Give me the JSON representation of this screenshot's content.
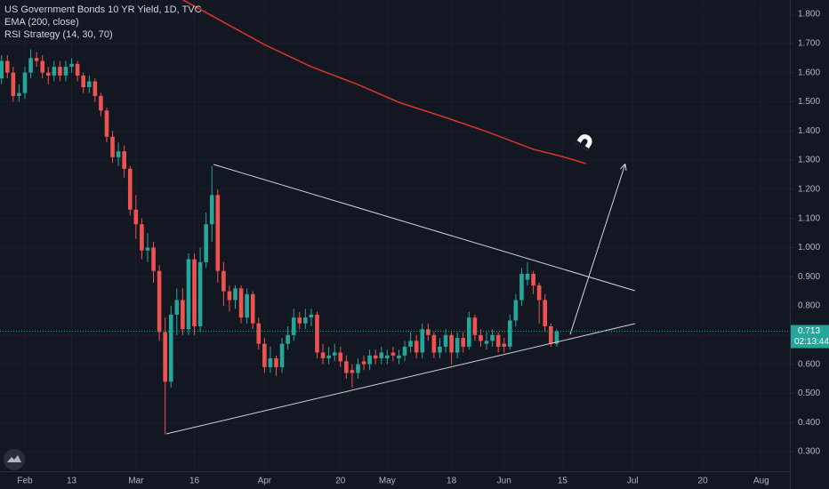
{
  "chart_data": {
    "type": "candlestick",
    "title": "US Government Bonds 10 YR Yield, 1D, TVC",
    "indicators": [
      "EMA (200, close)",
      "RSI Strategy (14, 30, 70)"
    ],
    "x": [
      -4,
      -3,
      -2,
      -1,
      0,
      1,
      2,
      3,
      4,
      5,
      6,
      7,
      8,
      9,
      10,
      11,
      12,
      13,
      14,
      15,
      16,
      17,
      18,
      19,
      20,
      21,
      22,
      23,
      24,
      25,
      26,
      27,
      28,
      29,
      30,
      31,
      32,
      33,
      34,
      35,
      36,
      37,
      38,
      39,
      40,
      41,
      42,
      43,
      44,
      45,
      46,
      47,
      48,
      49,
      50,
      51,
      52,
      53,
      54,
      55,
      56,
      57,
      58,
      59,
      60,
      61,
      62,
      63,
      64,
      65,
      66,
      67,
      68,
      69,
      70,
      71,
      72,
      73,
      74,
      75,
      76,
      77,
      78,
      79,
      80,
      81,
      82,
      83,
      84,
      85,
      86,
      87,
      88,
      89,
      90,
      91
    ],
    "open": [
      1.58,
      1.64,
      1.6,
      1.52,
      1.53,
      1.6,
      1.65,
      1.64,
      1.6,
      1.59,
      1.62,
      1.59,
      1.62,
      1.63,
      1.59,
      1.55,
      1.57,
      1.52,
      1.47,
      1.38,
      1.31,
      1.33,
      1.27,
      1.13,
      1.08,
      0.99,
      1.0,
      0.92,
      0.71,
      0.54,
      0.77,
      0.82,
      0.72,
      0.96,
      0.73,
      0.95,
      1.08,
      1.18,
      0.92,
      0.85,
      0.82,
      0.86,
      0.76,
      0.84,
      0.74,
      0.67,
      0.59,
      0.62,
      0.59,
      0.67,
      0.7,
      0.76,
      0.74,
      0.76,
      0.77,
      0.64,
      0.62,
      0.63,
      0.64,
      0.61,
      0.58,
      0.57,
      0.61,
      0.6,
      0.63,
      0.62,
      0.62,
      0.64,
      0.62,
      0.63,
      0.66,
      0.68,
      0.64,
      0.72,
      0.7,
      0.64,
      0.66,
      0.7,
      0.64,
      0.69,
      0.66,
      0.76,
      0.7,
      0.67,
      0.68,
      0.7,
      0.67,
      0.66,
      0.75,
      0.82,
      0.89,
      0.91,
      0.87,
      0.82,
      0.73,
      0.67
    ],
    "high": [
      1.66,
      1.66,
      1.62,
      1.56,
      1.62,
      1.68,
      1.67,
      1.66,
      1.62,
      1.64,
      1.64,
      1.64,
      1.65,
      1.64,
      1.6,
      1.59,
      1.58,
      1.53,
      1.48,
      1.4,
      1.36,
      1.35,
      1.28,
      1.18,
      1.1,
      1.05,
      1.02,
      0.94,
      0.76,
      0.8,
      0.86,
      0.86,
      0.98,
      0.98,
      1.0,
      1.12,
      1.28,
      1.2,
      0.95,
      0.87,
      0.87,
      0.87,
      0.86,
      0.85,
      0.76,
      0.69,
      0.66,
      0.63,
      0.69,
      0.73,
      0.79,
      0.78,
      0.79,
      0.79,
      0.78,
      0.67,
      0.66,
      0.67,
      0.66,
      0.63,
      0.6,
      0.62,
      0.63,
      0.65,
      0.65,
      0.66,
      0.65,
      0.66,
      0.65,
      0.68,
      0.71,
      0.7,
      0.74,
      0.74,
      0.71,
      0.69,
      0.72,
      0.71,
      0.71,
      0.71,
      0.78,
      0.77,
      0.72,
      0.71,
      0.72,
      0.71,
      0.69,
      0.77,
      0.84,
      0.93,
      0.95,
      0.92,
      0.88,
      0.84,
      0.74,
      0.72
    ],
    "low": [
      1.56,
      1.58,
      1.5,
      1.5,
      1.51,
      1.58,
      1.62,
      1.58,
      1.56,
      1.57,
      1.57,
      1.57,
      1.6,
      1.57,
      1.53,
      1.53,
      1.5,
      1.45,
      1.36,
      1.29,
      1.28,
      1.24,
      1.11,
      1.03,
      0.96,
      0.95,
      0.88,
      0.68,
      0.36,
      0.52,
      0.7,
      0.7,
      0.7,
      0.7,
      0.71,
      0.93,
      1.02,
      0.88,
      0.8,
      0.78,
      0.79,
      0.74,
      0.74,
      0.72,
      0.65,
      0.57,
      0.57,
      0.56,
      0.57,
      0.65,
      0.68,
      0.72,
      0.72,
      0.73,
      0.62,
      0.6,
      0.6,
      0.61,
      0.59,
      0.55,
      0.52,
      0.55,
      0.58,
      0.58,
      0.6,
      0.6,
      0.6,
      0.61,
      0.6,
      0.61,
      0.64,
      0.62,
      0.62,
      0.68,
      0.62,
      0.62,
      0.64,
      0.6,
      0.62,
      0.64,
      0.65,
      0.68,
      0.66,
      0.65,
      0.66,
      0.64,
      0.64,
      0.65,
      0.73,
      0.8,
      0.87,
      0.84,
      0.74,
      0.71,
      0.66,
      0.66
    ],
    "close": [
      1.64,
      1.6,
      1.52,
      1.53,
      1.6,
      1.65,
      1.64,
      1.6,
      1.59,
      1.62,
      1.59,
      1.62,
      1.63,
      1.59,
      1.55,
      1.57,
      1.52,
      1.47,
      1.38,
      1.31,
      1.33,
      1.27,
      1.13,
      1.08,
      0.99,
      1.0,
      0.92,
      0.71,
      0.54,
      0.77,
      0.82,
      0.72,
      0.96,
      0.73,
      0.95,
      1.08,
      1.18,
      0.92,
      0.85,
      0.82,
      0.86,
      0.76,
      0.84,
      0.74,
      0.67,
      0.59,
      0.62,
      0.59,
      0.67,
      0.7,
      0.76,
      0.74,
      0.76,
      0.77,
      0.64,
      0.62,
      0.63,
      0.64,
      0.61,
      0.57,
      0.57,
      0.6,
      0.6,
      0.63,
      0.62,
      0.64,
      0.63,
      0.63,
      0.63,
      0.66,
      0.68,
      0.64,
      0.72,
      0.7,
      0.64,
      0.66,
      0.7,
      0.64,
      0.69,
      0.66,
      0.76,
      0.7,
      0.68,
      0.68,
      0.7,
      0.66,
      0.66,
      0.75,
      0.82,
      0.91,
      0.91,
      0.87,
      0.82,
      0.73,
      0.67,
      0.713
    ],
    "up_color": "#26a69a",
    "down_color": "#ef5350",
    "ema": {
      "name": "EMA (200, close)",
      "color": "#d8362b",
      "x": [
        27,
        34,
        41,
        49,
        57,
        64,
        72,
        79,
        87,
        92,
        96
      ],
      "values": [
        1.85,
        1.773,
        1.696,
        1.62,
        1.559,
        1.498,
        1.446,
        1.398,
        1.337,
        1.312,
        1.288
      ]
    },
    "drawings": [
      {
        "type": "line",
        "color": "#d1d4dc",
        "x": [
          32.3,
          104.4
        ],
        "y": [
          1.285,
          0.852
        ]
      },
      {
        "type": "line",
        "color": "#d1d4dc",
        "x": [
          24.2,
          104.4
        ],
        "y": [
          0.361,
          0.739
        ]
      },
      {
        "type": "arrow",
        "color": "#d1d4dc",
        "x": [
          93.3,
          102.7
        ],
        "y": [
          0.702,
          1.285
        ]
      }
    ],
    "last_price": 0.713,
    "countdown": "02:13:44",
    "xlim": [
      -4.26,
      130.9
    ],
    "ylim": [
      0.233,
      1.849
    ],
    "yticks": [
      {
        "value": 1.8,
        "label": "1.800"
      },
      {
        "value": 1.7,
        "label": "1.700"
      },
      {
        "value": 1.6,
        "label": "1.600"
      },
      {
        "value": 1.5,
        "label": "1.500"
      },
      {
        "value": 1.4,
        "label": "1.400"
      },
      {
        "value": 1.3,
        "label": "1.300"
      },
      {
        "value": 1.2,
        "label": "1.200"
      },
      {
        "value": 1.1,
        "label": "1.100"
      },
      {
        "value": 1.0,
        "label": "1.000"
      },
      {
        "value": 0.9,
        "label": "0.900"
      },
      {
        "value": 0.8,
        "label": "0.800"
      },
      {
        "value": 0.7,
        "label": "0.700"
      },
      {
        "value": 0.6,
        "label": "0.600"
      },
      {
        "value": 0.5,
        "label": "0.500"
      },
      {
        "value": 0.4,
        "label": "0.400"
      },
      {
        "value": 0.3,
        "label": "0.300"
      }
    ],
    "xticks": [
      {
        "value": 0,
        "label": "Feb"
      },
      {
        "value": 8,
        "label": "13"
      },
      {
        "value": 19,
        "label": "Mar"
      },
      {
        "value": 29,
        "label": "16"
      },
      {
        "value": 41,
        "label": "Apr"
      },
      {
        "value": 54,
        "label": "20"
      },
      {
        "value": 62,
        "label": "May"
      },
      {
        "value": 73,
        "label": "18"
      },
      {
        "value": 82,
        "label": "Jun"
      },
      {
        "value": 92,
        "label": "15"
      },
      {
        "value": 104,
        "label": "Jul"
      },
      {
        "value": 116,
        "label": "20"
      },
      {
        "value": 126,
        "label": "Aug"
      }
    ],
    "grid": true
  }
}
